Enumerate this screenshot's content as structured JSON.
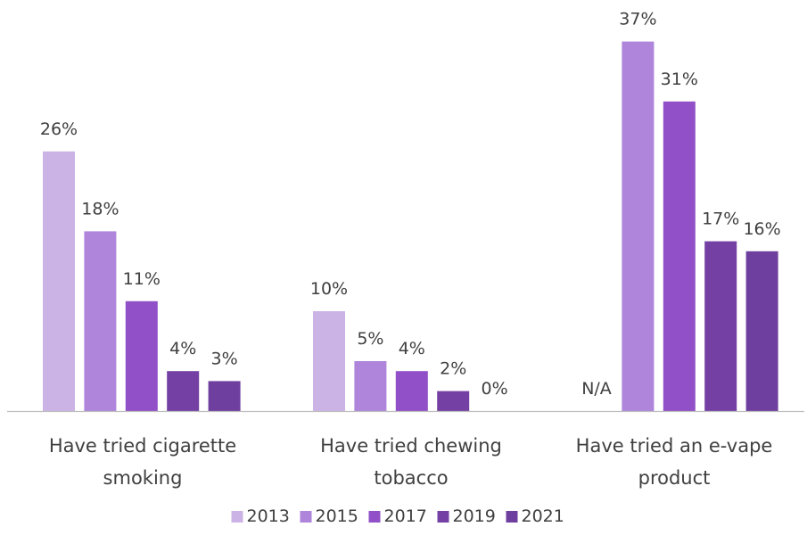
{
  "chart_data": {
    "type": "bar",
    "title": "",
    "xlabel": "",
    "ylabel": "",
    "ylim": [
      0,
      38
    ],
    "grid": false,
    "legend_position": "bottom",
    "categories": [
      [
        "Have tried cigarette",
        "smoking"
      ],
      [
        "Have tried chewing",
        "tobacco"
      ],
      [
        "Have tried an e-vape",
        "product"
      ]
    ],
    "series": [
      {
        "name": "2013",
        "color": "#ccb3e6",
        "values": [
          26,
          10,
          null
        ],
        "labels": [
          "26%",
          "10%",
          "N/A"
        ]
      },
      {
        "name": "2015",
        "color": "#ae85db",
        "values": [
          18,
          5,
          37
        ],
        "labels": [
          "18%",
          "5%",
          "37%"
        ]
      },
      {
        "name": "2017",
        "color": "#9150c7",
        "values": [
          11,
          4,
          31
        ],
        "labels": [
          "11%",
          "4%",
          "31%"
        ]
      },
      {
        "name": "2019",
        "color": "#7540a3",
        "values": [
          4,
          2,
          17
        ],
        "labels": [
          "4%",
          "2%",
          "17%"
        ]
      },
      {
        "name": "2021",
        "color": "#6f3f9f",
        "values": [
          3,
          0,
          16
        ],
        "labels": [
          "3%",
          "0%",
          "16%"
        ]
      }
    ]
  }
}
